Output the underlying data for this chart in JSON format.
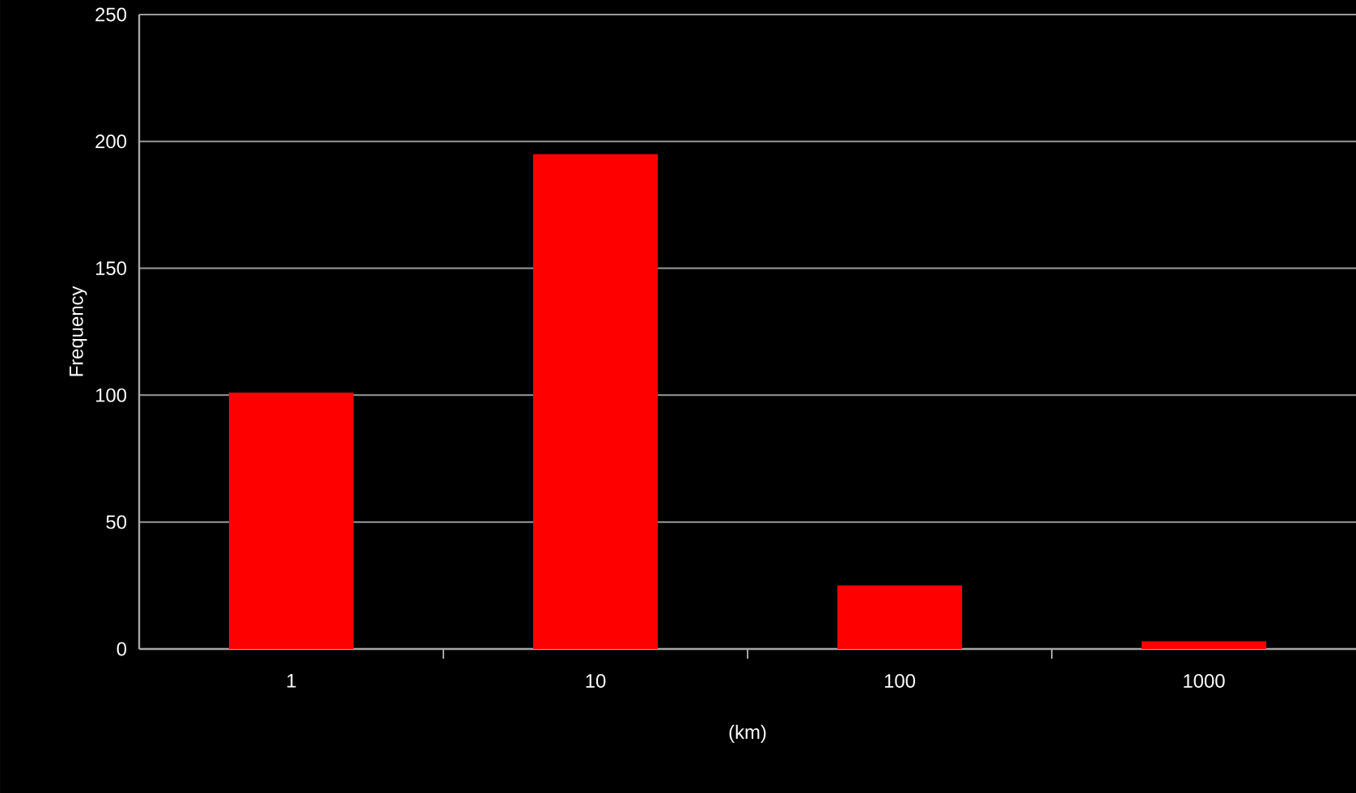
{
  "chart_data": {
    "type": "bar",
    "xlabel": "(km)",
    "ylabel": "Frequency",
    "categories": [
      "1",
      "10",
      "100",
      "1000"
    ],
    "values": [
      101,
      195,
      25,
      3
    ],
    "color": "#ff0000",
    "ylim": [
      0,
      250
    ],
    "yticks": [
      0,
      50,
      100,
      150,
      200,
      250
    ],
    "grid": "y"
  }
}
